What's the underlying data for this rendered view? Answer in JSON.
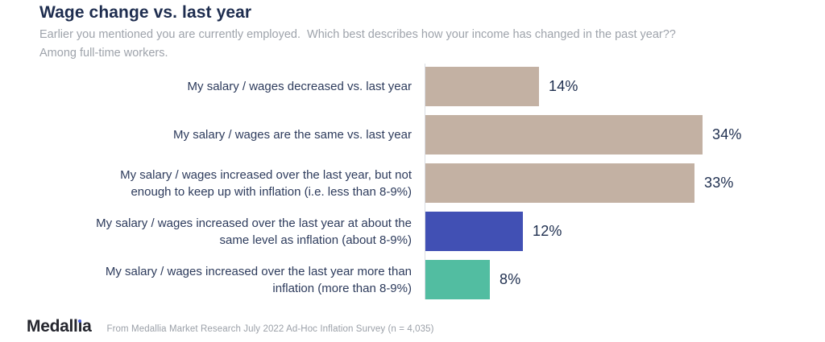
{
  "header": {
    "title": "Wage change vs. last year",
    "subtitle_lines": [
      "Earlier you mentioned you are currently employed.  Which best describes how your income has changed in the past year??",
      "Among full-time workers."
    ]
  },
  "chart_data": {
    "type": "bar",
    "orientation": "horizontal",
    "title": "Wage change vs. last year",
    "value_unit": "%",
    "xlim": [
      0,
      40
    ],
    "grid": false,
    "legend": false,
    "axis_line_color": "#d9dce2",
    "categories": [
      "My salary / wages decreased vs. last year",
      "My salary / wages are the same vs. last year",
      "My salary / wages increased over the last year, but not enough to keep up with inflation (i.e. less than 8-9%)",
      "My salary / wages increased over the last year at about the same level as inflation (about 8-9%)",
      "My salary / wages increased over the last year more than inflation (more than 8-9%)"
    ],
    "values": [
      14,
      34,
      33,
      12,
      8
    ],
    "bars": [
      {
        "label_lines": [
          "My salary / wages decreased vs. last year"
        ],
        "value": 14,
        "display": "14%",
        "color": "#c3b1a3"
      },
      {
        "label_lines": [
          "My salary / wages are the same vs. last year"
        ],
        "value": 34,
        "display": "34%",
        "color": "#c3b1a3"
      },
      {
        "label_lines": [
          "My salary / wages increased over the last year, but not",
          "enough to keep up with inflation (i.e. less than 8-9%)"
        ],
        "value": 33,
        "display": "33%",
        "color": "#c3b1a3"
      },
      {
        "label_lines": [
          "My salary / wages increased over the last year at about the",
          "same level as inflation (about 8-9%)"
        ],
        "value": 12,
        "display": "12%",
        "color": "#4150b4"
      },
      {
        "label_lines": [
          "My salary / wages increased over the last year more than",
          "inflation (more than 8-9%)"
        ],
        "value": 8,
        "display": "8%",
        "color": "#52bda1"
      }
    ],
    "colors": {
      "neutral_tan": "#c3b1a3",
      "highlight_blue": "#4150b4",
      "highlight_teal": "#52bda1",
      "label_navy": "#2d3b5c",
      "value_navy": "#203050"
    }
  },
  "footer": {
    "logo": {
      "text": "Medallia",
      "part1": "Medall",
      "dotless_i": "ı",
      "part2": "a",
      "dot_color": "#4a5fd8"
    },
    "source": "From Medallia Market Research July 2022 Ad-Hoc Inflation Survey (n = 4,035)"
  }
}
